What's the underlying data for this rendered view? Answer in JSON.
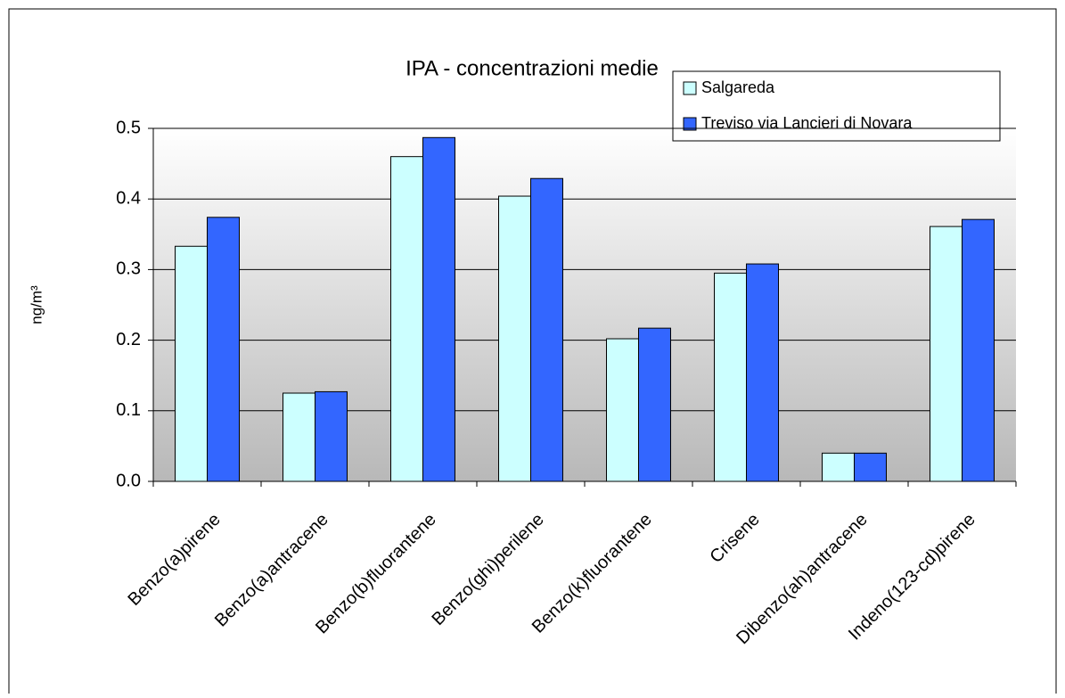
{
  "chart_data": {
    "type": "bar",
    "title": "IPA - concentrazioni medie",
    "y_label": "ng/m³",
    "categories": [
      "Benzo(a)pirene",
      "Benzo(a)antracene",
      "Benzo(b)fluorantene",
      "Benzo(ghi)perilene",
      "Benzo(k)fluorantene",
      "Crisene",
      "Dibenzo(ah)antracene",
      "Indeno(123-cd)pirene"
    ],
    "series": [
      {
        "name": "Salgareda",
        "color": "#ccffff",
        "values": [
          0.333,
          0.125,
          0.46,
          0.404,
          0.202,
          0.295,
          0.04,
          0.361
        ]
      },
      {
        "name": "Treviso via Lancieri di Novara",
        "color": "#3366ff",
        "values": [
          0.374,
          0.127,
          0.487,
          0.429,
          0.217,
          0.308,
          0.04,
          0.371
        ]
      }
    ],
    "ylim": [
      0,
      0.5
    ],
    "yticks": [
      {
        "value": 0,
        "label": "0.0"
      },
      0.1,
      0.2,
      0.3,
      0.4,
      0.5
    ],
    "grid": true,
    "legend": "top-right"
  }
}
